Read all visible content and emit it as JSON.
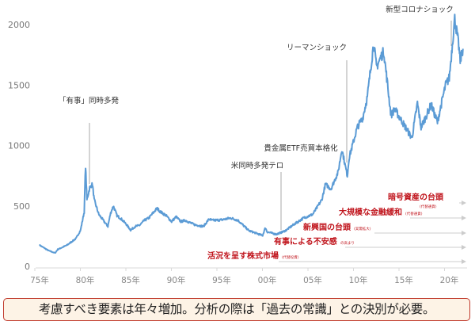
{
  "chart_data": {
    "type": "line",
    "title": "",
    "xlabel": "",
    "ylabel": "",
    "xlim": [
      1975,
      2021.7
    ],
    "ylim": [
      0,
      2100
    ],
    "y_ticks": [
      0,
      500,
      1000,
      1500,
      2000
    ],
    "x_ticks": [
      {
        "year": 1975,
        "label": "75年"
      },
      {
        "year": 1980,
        "label": "80年"
      },
      {
        "year": 1985,
        "label": "85年"
      },
      {
        "year": 1990,
        "label": "90年"
      },
      {
        "year": 1995,
        "label": "95年"
      },
      {
        "year": 2000,
        "label": "00年"
      },
      {
        "year": 2005,
        "label": "05年"
      },
      {
        "year": 2010,
        "label": "10年"
      },
      {
        "year": 2015,
        "label": "15年"
      },
      {
        "year": 2020,
        "label": "20年"
      }
    ],
    "grid": false,
    "line_color": "#5b9bd5",
    "x": [
      1975,
      1976,
      1976.7,
      1977,
      1978,
      1979,
      1979.5,
      1979.9,
      1980.05,
      1980.2,
      1980.5,
      1980.8,
      1981,
      1981.5,
      1982,
      1982.5,
      1982.8,
      1983.1,
      1983.5,
      1984,
      1984.5,
      1985,
      1985.5,
      1986,
      1986.5,
      1987,
      1987.9,
      1988.3,
      1988.9,
      1989.5,
      1990,
      1990.5,
      1991,
      1992,
      1993,
      1993.6,
      1994,
      1995,
      1996,
      1996.8,
      1997.5,
      1998,
      1999.5,
      1999.8,
      2000,
      2001,
      2001.7,
      2002,
      2003,
      2004,
      2005,
      2006,
      2006.4,
      2007,
      2007.8,
      2008.2,
      2008.8,
      2009,
      2009.9,
      2010.5,
      2011,
      2011.7,
      2012,
      2012.8,
      2013.3,
      2013.6,
      2014,
      2014.8,
      2015.9,
      2016.5,
      2016.9,
      2017.5,
      2018,
      2018.7,
      2019,
      2019.6,
      2020,
      2020.6,
      2021,
      2021.2,
      2021.5
    ],
    "y": [
      175,
      130,
      110,
      140,
      175,
      230,
      300,
      450,
      830,
      550,
      650,
      680,
      550,
      430,
      380,
      330,
      440,
      500,
      420,
      390,
      350,
      300,
      330,
      340,
      380,
      400,
      480,
      450,
      420,
      370,
      410,
      370,
      380,
      345,
      330,
      390,
      380,
      385,
      400,
      380,
      330,
      295,
      255,
      320,
      285,
      265,
      285,
      295,
      350,
      400,
      430,
      550,
      680,
      640,
      780,
      970,
      750,
      900,
      1150,
      1230,
      1400,
      1850,
      1650,
      1780,
      1450,
      1250,
      1300,
      1200,
      1060,
      1350,
      1150,
      1250,
      1340,
      1190,
      1300,
      1500,
      1560,
      2050,
      1850,
      1700,
      1800
    ],
    "annotations": [
      {
        "label": "「有事」同時多発",
        "year": 1980.05
      },
      {
        "label": "米同時多発テロ",
        "year": 2001.7
      },
      {
        "label": "貴金属ETF売買本格化",
        "year": 2004
      },
      {
        "label": "リーマンショック",
        "year": 2008.8
      },
      {
        "label": "新型コロナショック",
        "year": 2020.3
      }
    ],
    "factors": [
      {
        "label": "暗号資産の台頭",
        "note": "(代替通貨)"
      },
      {
        "label": "大規模な金融緩和",
        "note": "(代替通貨)"
      },
      {
        "label": "新興国の台頭",
        "note": "(実需拡大)"
      },
      {
        "label": "有事による不安感",
        "note": "の高まり"
      },
      {
        "label": "活況を呈す株式市場",
        "note": "(代替投資)"
      }
    ],
    "factor_color": "#c0141c"
  },
  "caption": "考慮すべき要素は年々増加。分析の際は「過去の常識」との決別が必要。"
}
